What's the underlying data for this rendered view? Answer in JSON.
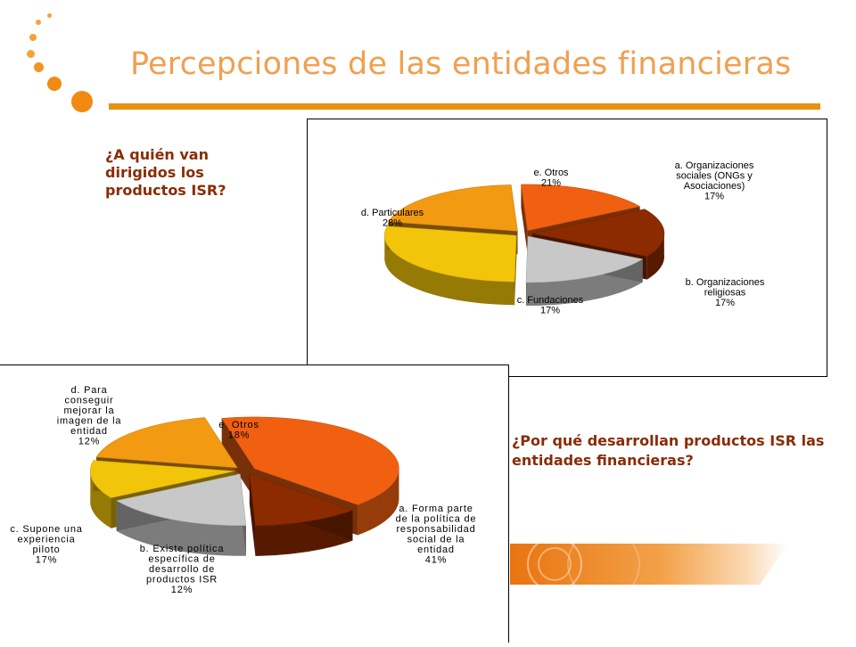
{
  "slide": {
    "title": "Percepciones de las entidades financieras",
    "question_1": "¿A quién van dirigidos los productos ISR?",
    "question_2": "¿Por qué desarrollan productos ISR las entidades financieras?",
    "accent_color": "#e8900f",
    "question_color": "#8a2c04"
  },
  "chart_data": [
    {
      "type": "pie",
      "labels": [
        "a. Organizaciones sociales (ONGs y Asociaciones)",
        "b. Organizaciones religiosas",
        "c. Fundaciones",
        "d. Particulares",
        "e. Otros"
      ],
      "values": [
        17,
        17,
        17,
        28,
        21
      ],
      "value_labels": [
        "17%",
        "17%",
        "17%",
        "28%",
        "21%"
      ],
      "colors": [
        "#f06010",
        "#8c2a00",
        "#c8c8c8",
        "#f2c40a",
        "#f29a12"
      ],
      "exploded": true,
      "three_d": true
    },
    {
      "type": "pie",
      "labels": [
        "a. Forma parte de la política de responsabilidad social de la entidad",
        "b. Existe política específica de desarrollo de productos ISR",
        "c. Supone una experiencia piloto",
        "d. Para conseguir mejorar la imagen de la entidad",
        "e. Otros"
      ],
      "values": [
        41,
        12,
        17,
        12,
        18
      ],
      "value_labels": [
        "41%",
        "12%",
        "17%",
        "12%",
        "18%"
      ],
      "colors": [
        "#f06010",
        "#8c2a00",
        "#c8c8c8",
        "#f2c40a",
        "#f29a12"
      ],
      "exploded": true,
      "three_d": true
    }
  ],
  "label_lines": {
    "chart1": {
      "a": [
        "a. Organizaciones",
        "sociales (ONGs y",
        "Asociaciones)",
        "17%"
      ],
      "b": [
        "b. Organizaciones",
        "religiosas",
        "17%"
      ],
      "c": [
        "c. Fundaciones",
        "17%"
      ],
      "d": [
        "d. Particulares",
        "28%"
      ],
      "e": [
        "e. Otros",
        "21%"
      ]
    },
    "chart2": {
      "a": [
        "a. Forma parte",
        "de la política de",
        "responsabilidad",
        "social de la",
        "entidad",
        "41%"
      ],
      "b": [
        "b. Existe política",
        "específica de",
        "desarrollo de",
        "productos ISR",
        "12%"
      ],
      "c": [
        "c. Supone una",
        "experiencia",
        "piloto",
        "17%"
      ],
      "d": [
        "d. Para",
        "conseguir",
        "mejorar la",
        "imagen de la",
        "entidad",
        "12%"
      ],
      "e": [
        "e. Otros",
        "18%"
      ]
    }
  }
}
